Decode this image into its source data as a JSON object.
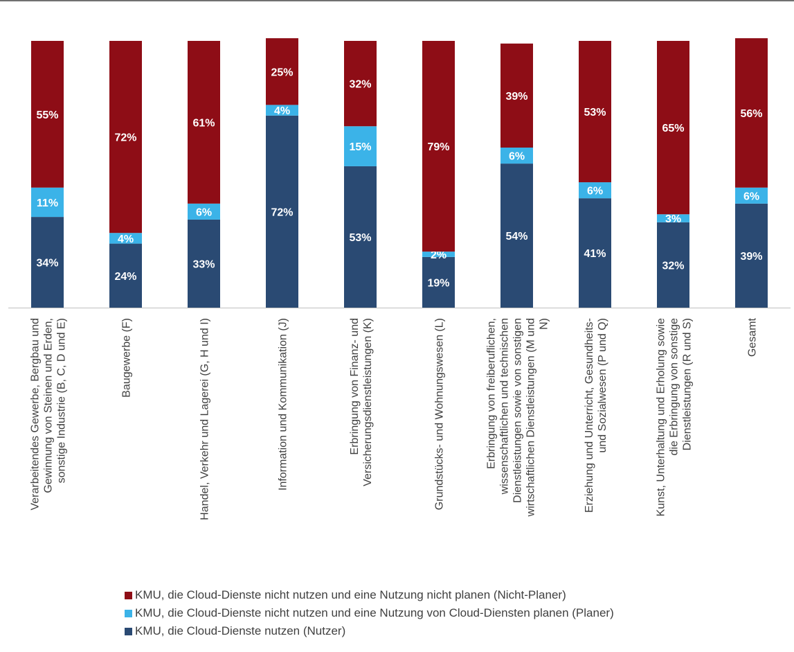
{
  "chart_data": {
    "type": "bar",
    "stacked": true,
    "ylim": [
      0,
      100
    ],
    "categories": [
      "Verarbeitendes Gewerbe, Bergbau und Gewinnung von Steinen und Erden, sonstige Industrie (B, C, D und E)",
      "Baugewerbe (F)",
      "Handel, Verkehr und Lagerei (G, H und I)",
      "Information und Kommunikation (J)",
      "Erbringung von Finanz- und Versicherungsdienstleistungen (K)",
      "Grundstücks- und Wohnungswesen (L)",
      "Erbringung von freiberuflichen, wissenschaftlichen und technischen Dienstleistungen sowie von sonstigen wirtschaftlichen Dienstleistungen (M und N)",
      "Erziehung und Unterricht, Gesundheits- und Sozialwesen (P und Q)",
      "Kunst, Unterhaltung und Erholung sowie die Erbringung von sonstige Dienstleistungen (R und S)",
      "Gesamt"
    ],
    "category_lines": [
      [
        "Verarbeitendes Gewerbe, Bergbau und",
        "Gewinnung von Steinen und Erden,",
        "sonstige Industrie (B, C, D und E)"
      ],
      [
        "Baugewerbe (F)"
      ],
      [
        "Handel, Verkehr und Lagerei (G, H und I)"
      ],
      [
        "Information und Kommunikation (J)"
      ],
      [
        "Erbringung von Finanz- und",
        "Versicherungsdienstleistungen (K)"
      ],
      [
        "Grundstücks- und Wohnungswesen (L)"
      ],
      [
        "Erbringung von freiberuflichen,",
        "wissenschaftlichen und technischen",
        "Dienstleistungen sowie von sonstigen",
        "wirtschaftlichen Dienstleistungen (M und",
        "N)"
      ],
      [
        "Erziehung und Unterricht, Gesundheits-",
        "und Sozialwesen (P und Q)"
      ],
      [
        "Kunst, Unterhaltung und Erholung sowie",
        "die Erbringung von sonstige",
        "Dienstleistungen (R und S)"
      ],
      [
        "Gesamt"
      ]
    ],
    "series": [
      {
        "name": "KMU, die Cloud-Dienste nutzen (Nutzer)",
        "color": "#2a4a73",
        "values": [
          34,
          24,
          33,
          72,
          53,
          19,
          54,
          41,
          32,
          39
        ]
      },
      {
        "name": "KMU, die Cloud-Dienste nicht nutzen und eine Nutzung von Cloud-Diensten planen (Planer)",
        "color": "#3bb3e8",
        "values": [
          11,
          4,
          6,
          4,
          15,
          2,
          6,
          6,
          3,
          6
        ]
      },
      {
        "name": "KMU, die Cloud-Dienste nicht nutzen und eine Nutzung nicht planen (Nicht-Planer)",
        "color": "#8e0d16",
        "values": [
          55,
          72,
          61,
          25,
          32,
          79,
          39,
          53,
          65,
          56
        ]
      }
    ],
    "legend_order": [
      2,
      1,
      0
    ],
    "legend_position": "bottom",
    "grid": false
  }
}
